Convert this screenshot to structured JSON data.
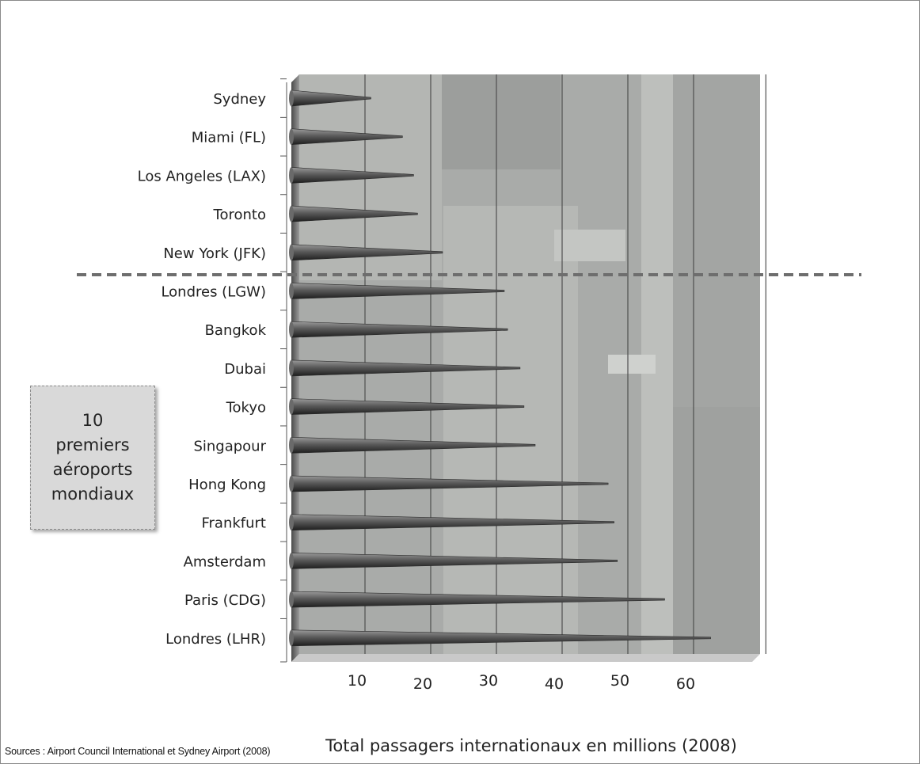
{
  "chart_data": {
    "type": "bar",
    "orientation": "horizontal",
    "categories": [
      "Sydney",
      "Miami (FL)",
      "Los Angeles (LAX)",
      "Toronto",
      "New York (JFK)",
      "Londres (LGW)",
      "Bangkok",
      "Dubai",
      "Tokyo",
      "Singapour",
      "Hong Kong",
      "Frankfurt",
      "Amsterdam",
      "Paris (CDG)",
      "Londres (LHR)"
    ],
    "values": [
      10.9,
      15.7,
      17.4,
      18,
      21.8,
      31.2,
      31.7,
      33.6,
      34.2,
      35.9,
      47,
      47.9,
      48.4,
      55.6,
      62.6
    ],
    "xlabel": "Total passagers internationaux en millions (2008)",
    "ticks": [
      10,
      20,
      30,
      40,
      50,
      60
    ],
    "xlim": [
      0,
      71
    ],
    "grid": true,
    "bar_shape": "cone",
    "background": "aerial airport photo (gray)",
    "separator": "dashed line between New York (JFK) and Londres (LGW)"
  },
  "callout": {
    "text": "10\npremiers\naéroports\nmondiaux"
  },
  "source": "Sources : Airport Council International et Sydney Airport (2008)",
  "colors": {
    "bar_dark": "#3a3a3a",
    "bar_light": "#8e8e8e",
    "photo_bg": "#a8aaa8",
    "separator": "#6e6e6e"
  }
}
